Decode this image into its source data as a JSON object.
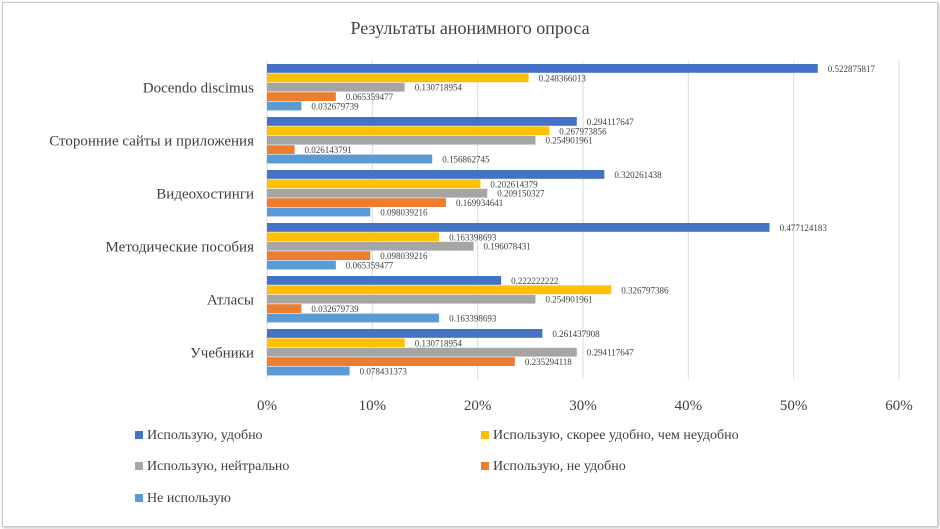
{
  "chart_data": {
    "type": "bar",
    "orientation": "horizontal",
    "title": "Результаты анонимного опроса",
    "xlabel": "",
    "ylabel": "",
    "xlim": [
      0,
      0.6
    ],
    "x_ticks": [
      "0%",
      "10%",
      "20%",
      "30%",
      "40%",
      "50%",
      "60%"
    ],
    "x_tick_values": [
      0,
      0.1,
      0.2,
      0.3,
      0.4,
      0.5,
      0.6
    ],
    "grid": true,
    "legend_position": "bottom",
    "categories": [
      "Docendo discimus",
      "Сторонние сайты и приложения",
      "Видеохостинги",
      "Методические пособия",
      "Атласы",
      "Учебники"
    ],
    "series": [
      {
        "name": "Использую, удобно",
        "color": "#4472C4",
        "values": [
          0.522875817,
          0.294117647,
          0.320261438,
          0.477124183,
          0.222222222,
          0.261437908
        ],
        "labels": [
          "0.522875817",
          "0.294117647",
          "0.320261438",
          "0.477124183",
          "0.222222222",
          "0.261437908"
        ]
      },
      {
        "name": "Использую, скорее удобно, чем неудобно",
        "color": "#FFC000",
        "values": [
          0.248366013,
          0.267973856,
          0.202614379,
          0.163398693,
          0.326797386,
          0.130718954
        ],
        "labels": [
          "0.248366013",
          "0.267973856",
          "0.202614379",
          "0.163398693",
          "0.326797386",
          "0.130718954"
        ]
      },
      {
        "name": "Использую, нейтрально",
        "color": "#A5A5A5",
        "values": [
          0.130718954,
          0.254901961,
          0.209150327,
          0.196078431,
          0.254901961,
          0.294117647
        ],
        "labels": [
          "0.130718954",
          "0.254901961",
          "0.209150327",
          "0.196078431",
          "0.254901961",
          "0.294117647"
        ]
      },
      {
        "name": "Использую, не удобно",
        "color": "#ED7D31",
        "values": [
          0.065359477,
          0.026143791,
          0.169934641,
          0.098039216,
          0.032679739,
          0.235294118
        ],
        "labels": [
          "0.065359477",
          "0.026143791",
          "0.169934641",
          "0.098039216",
          "0.032679739",
          "0.235294118"
        ]
      },
      {
        "name": "Не использую",
        "color": "#5B9BD5",
        "values": [
          0.032679739,
          0.156862745,
          0.098039216,
          0.065359477,
          0.163398693,
          0.078431373
        ],
        "labels": [
          "0.032679739",
          "0.156862745",
          "0.098039216",
          "0.065359477",
          "0.163398693",
          "0.078431373"
        ]
      }
    ]
  }
}
